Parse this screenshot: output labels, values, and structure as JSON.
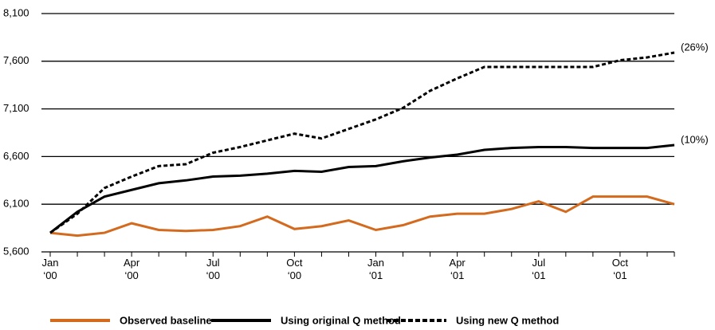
{
  "chart_data": {
    "type": "line",
    "categories": [
      "Jan ‘00",
      null,
      null,
      "Apr ‘00",
      null,
      null,
      "Jul ‘00",
      null,
      null,
      "Oct ‘00",
      null,
      null,
      "Jan ‘01",
      null,
      null,
      "Apr ‘01",
      null,
      null,
      "Jul ‘01",
      null,
      null,
      "Oct ‘01",
      null,
      null
    ],
    "series": [
      {
        "name": "Observed baseline",
        "color": "#d46a1e",
        "style": "solid",
        "values": [
          5800,
          5770,
          5800,
          5900,
          5830,
          5820,
          5830,
          5870,
          5970,
          5840,
          5870,
          5930,
          5830,
          5880,
          5970,
          6000,
          6000,
          6050,
          6130,
          6020,
          6180,
          6180,
          6180,
          6100
        ]
      },
      {
        "name": "Using original Q method",
        "color": "#000000",
        "style": "solid",
        "label": "(10%)",
        "values": [
          5800,
          6020,
          6180,
          6250,
          6320,
          6350,
          6390,
          6400,
          6420,
          6450,
          6440,
          6490,
          6500,
          6550,
          6590,
          6620,
          6670,
          6690,
          6700,
          6700,
          6690,
          6690,
          6690,
          6720
        ]
      },
      {
        "name": "Using new Q method",
        "color": "#000000",
        "style": "dashed",
        "label": "(26%)",
        "values": [
          5800,
          6000,
          6270,
          6390,
          6500,
          6520,
          6640,
          6700,
          6770,
          6840,
          6790,
          6890,
          6990,
          7110,
          7290,
          7420,
          7540,
          7540,
          7540,
          7540,
          7540,
          7610,
          7640,
          7690
        ]
      }
    ],
    "ylim": [
      5600,
      8100
    ],
    "yticks": [
      {
        "value": 5600,
        "label": "5,600"
      },
      {
        "value": 6100,
        "label": "6,100"
      },
      {
        "value": 6600,
        "label": "6,600"
      },
      {
        "value": 7100,
        "label": "7,100"
      },
      {
        "value": 7600,
        "label": "7,600"
      },
      {
        "value": 8100,
        "label": "8,100"
      }
    ],
    "grid": true,
    "legend": "bottom"
  }
}
